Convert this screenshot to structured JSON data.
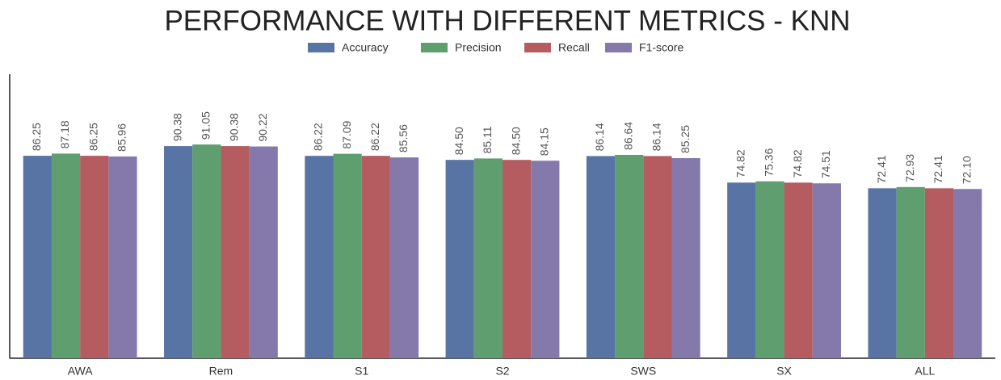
{
  "chart_data": {
    "type": "bar",
    "title": "PERFORMANCE WITH DIFFERENT METRICS - KNN",
    "categories": [
      "AWA",
      "Rem",
      "S1",
      "S2",
      "SWS",
      "SX",
      "ALL"
    ],
    "series": [
      {
        "name": "Accuracy",
        "color": "#5874a4",
        "values": [
          86.25,
          90.38,
          86.22,
          84.5,
          86.14,
          74.82,
          72.41
        ],
        "value_labels": [
          "86.25",
          "90.38",
          "86.22",
          "84.50",
          "86.14",
          "74.82",
          "72.41"
        ]
      },
      {
        "name": "Precision",
        "color": "#5f9e6e",
        "values": [
          87.18,
          91.05,
          87.09,
          85.11,
          86.64,
          75.36,
          72.93
        ],
        "value_labels": [
          "87.18",
          "91.05",
          "87.09",
          "85.11",
          "86.64",
          "75.36",
          "72.93"
        ]
      },
      {
        "name": "Recall",
        "color": "#b45c60",
        "values": [
          86.25,
          90.38,
          86.22,
          84.5,
          86.14,
          74.82,
          72.41
        ],
        "value_labels": [
          "86.25",
          "90.38",
          "86.22",
          "84.50",
          "86.14",
          "74.82",
          "72.41"
        ]
      },
      {
        "name": "F1-score",
        "color": "#8579ab",
        "values": [
          85.96,
          90.22,
          85.56,
          84.15,
          85.25,
          74.51,
          72.1
        ],
        "value_labels": [
          "85.96",
          "90.22",
          "85.56",
          "84.15",
          "85.25",
          "74.51",
          "72.10"
        ]
      }
    ],
    "ylim": [
      0,
      121
    ]
  }
}
